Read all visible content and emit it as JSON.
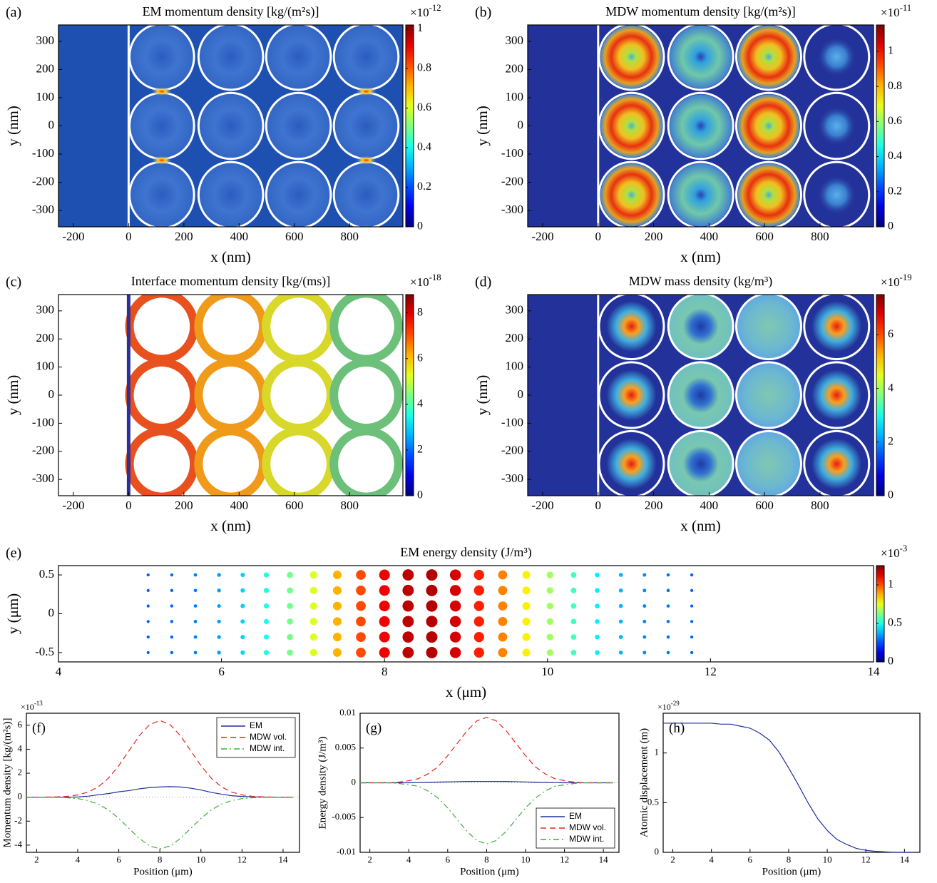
{
  "chart_data": [
    {
      "type": "heatmap",
      "panel_label": "(a)",
      "title": "EM momentum density [kg/(m²s)]",
      "xlabel": "x (nm)",
      "ylabel": "y (nm)",
      "xlim": [
        -254,
        993
      ],
      "xticks": [
        -200,
        0,
        200,
        400,
        600,
        800
      ],
      "ylim": [
        -358,
        358
      ],
      "yticks": [
        -300,
        -200,
        -100,
        0,
        100,
        200,
        300
      ],
      "colorbar": {
        "lim": [
          0,
          1.02
        ],
        "ticks": [
          0,
          0.2,
          0.4,
          0.6,
          0.8,
          1
        ],
        "multiplier": "×10",
        "exponent": "-12"
      }
    },
    {
      "type": "heatmap",
      "panel_label": "(b)",
      "title": "MDW momentum density [kg/(m²s)]",
      "xlabel": "x (nm)",
      "ylabel": "y (nm)",
      "xlim": [
        -254,
        993
      ],
      "xticks": [
        -200,
        0,
        200,
        400,
        600,
        800
      ],
      "ylim": [
        -358,
        358
      ],
      "yticks": [
        -300,
        -200,
        -100,
        0,
        100,
        200,
        300
      ],
      "colorbar": {
        "lim": [
          0,
          1.15
        ],
        "ticks": [
          0,
          0.2,
          0.4,
          0.6,
          0.8,
          1
        ],
        "multiplier": "×10",
        "exponent": "-11"
      }
    },
    {
      "type": "heatmap",
      "panel_label": "(c)",
      "title": "Interface momentum density [kg/(ms)]",
      "xlabel": "x (nm)",
      "ylabel": "y (nm)",
      "xlim": [
        -254,
        993
      ],
      "xticks": [
        -200,
        0,
        200,
        400,
        600,
        800
      ],
      "ylim": [
        -358,
        358
      ],
      "yticks": [
        -300,
        -200,
        -100,
        0,
        100,
        200,
        300
      ],
      "colorbar": {
        "lim": [
          0,
          8.8
        ],
        "ticks": [
          0,
          2,
          4,
          6,
          8
        ],
        "multiplier": "×10",
        "exponent": "-18"
      }
    },
    {
      "type": "heatmap",
      "panel_label": "(d)",
      "title": "MDW mass density (kg/m³)",
      "xlabel": "x (nm)",
      "ylabel": "y (nm)",
      "xlim": [
        -254,
        993
      ],
      "xticks": [
        -200,
        0,
        200,
        400,
        600,
        800
      ],
      "ylim": [
        -358,
        358
      ],
      "yticks": [
        -300,
        -200,
        -100,
        0,
        100,
        200,
        300
      ],
      "colorbar": {
        "lim": [
          0,
          7.5
        ],
        "ticks": [
          0,
          2,
          4,
          6
        ],
        "multiplier": "×10",
        "exponent": "-19"
      }
    },
    {
      "type": "heatmap",
      "panel_label": "(e)",
      "title": "EM energy density (J/m³)",
      "xlabel": "x (μm)",
      "ylabel": "y (μm)",
      "xlim": [
        4,
        14
      ],
      "xticks": [
        4,
        6,
        8,
        10,
        12,
        14
      ],
      "ylim": [
        -0.62,
        0.62
      ],
      "yticks": [
        -0.5,
        0,
        0.5
      ],
      "colorbar": {
        "lim": [
          0,
          1.25
        ],
        "ticks": [
          0,
          0.5,
          1
        ],
        "multiplier": "×10",
        "exponent": "-3"
      }
    },
    {
      "type": "line",
      "panel_label": "(f)",
      "xlabel": "Position (μm)",
      "ylabel": "Momentum density [kg/(m²s)]",
      "xlim": [
        1.5,
        14.8
      ],
      "xticks": [
        2,
        4,
        6,
        8,
        10,
        12,
        14
      ],
      "ylim": [
        -4.6,
        7
      ],
      "yticks": [
        -4,
        -2,
        0,
        2,
        4,
        6
      ],
      "multiplier": "×10",
      "exponent": "-13",
      "legend": "upper right",
      "zero_line": true,
      "x": [
        1.5,
        2,
        2.5,
        3,
        3.5,
        4,
        4.5,
        5,
        5.5,
        6,
        6.5,
        7,
        7.5,
        8,
        8.5,
        9,
        9.5,
        10,
        10.5,
        11,
        11.5,
        12,
        12.5,
        13,
        13.5,
        14,
        14.5
      ],
      "series": [
        {
          "name": "EM",
          "color": "#1f2f9a",
          "dash": "solid",
          "values": [
            0,
            0,
            0,
            0,
            0,
            0.02,
            0.08,
            0.2,
            0.3,
            0.45,
            0.55,
            0.7,
            0.8,
            0.85,
            0.88,
            0.85,
            0.75,
            0.6,
            0.4,
            0.25,
            0.12,
            0.06,
            0.03,
            0.01,
            0,
            0,
            0
          ]
        },
        {
          "name": "MDW vol.",
          "color": "#e8231f",
          "dash": "dashed",
          "values": [
            0,
            0,
            0.01,
            0.03,
            0.07,
            0.19,
            0.42,
            0.86,
            1.59,
            2.63,
            3.88,
            5.13,
            6.05,
            6.4,
            6.05,
            5.13,
            3.88,
            2.63,
            1.59,
            0.86,
            0.42,
            0.19,
            0.07,
            0.03,
            0.01,
            0,
            0
          ]
        },
        {
          "name": "MDW int.",
          "color": "#3cae3c",
          "dash": "dashdot",
          "values": [
            0,
            0,
            -0.01,
            -0.02,
            -0.05,
            -0.12,
            -0.28,
            -0.58,
            -1.07,
            -1.77,
            -2.61,
            -3.44,
            -4.07,
            -4.3,
            -4.07,
            -3.44,
            -2.61,
            -1.77,
            -1.07,
            -0.58,
            -0.28,
            -0.12,
            -0.05,
            -0.02,
            -0.01,
            0,
            0
          ]
        }
      ]
    },
    {
      "type": "line",
      "panel_label": "(g)",
      "xlabel": "Position (μm)",
      "ylabel": "Energy density (J/m³)",
      "xlim": [
        1.5,
        14.8
      ],
      "xticks": [
        2,
        4,
        6,
        8,
        10,
        12,
        14
      ],
      "ylim": [
        -0.01,
        0.01
      ],
      "yticks": [
        -0.01,
        -0.005,
        0,
        0.005,
        0.01
      ],
      "legend": "lower right",
      "zero_line": true,
      "x": [
        1.5,
        2,
        2.5,
        3,
        3.5,
        4,
        4.5,
        5,
        5.5,
        6,
        6.5,
        7,
        7.5,
        8,
        8.5,
        9,
        9.5,
        10,
        10.5,
        11,
        11.5,
        12,
        12.5,
        13,
        13.5,
        14,
        14.5
      ],
      "series": [
        {
          "name": "EM",
          "color": "#1f2f9a",
          "dash": "solid",
          "values": [
            0,
            0,
            0,
            0,
            0,
            0,
            2e-05,
            5e-05,
            0.0001,
            0.00013,
            0.00016,
            0.00019,
            0.0002,
            0.0002,
            0.0002,
            0.00019,
            0.00016,
            0.00012,
            8e-05,
            4e-05,
            2e-05,
            0,
            0,
            0,
            0,
            0,
            0
          ]
        },
        {
          "name": "MDW vol.",
          "color": "#e8231f",
          "dash": "dashed",
          "values": [
            0,
            0,
            0,
            0,
            0.0001,
            0.0003,
            0.0006,
            0.0013,
            0.0023,
            0.0039,
            0.0057,
            0.0075,
            0.0089,
            0.0094,
            0.0089,
            0.0075,
            0.0057,
            0.0039,
            0.0023,
            0.0013,
            0.0006,
            0.0003,
            0.0001,
            0,
            0,
            0,
            0
          ]
        },
        {
          "name": "MDW int.",
          "color": "#3cae3c",
          "dash": "dashdot",
          "values": [
            0,
            0,
            0,
            0,
            -0.0001,
            -0.0003,
            -0.0005,
            -0.0012,
            -0.0022,
            -0.0036,
            -0.0053,
            -0.007,
            -0.0083,
            -0.0088,
            -0.0083,
            -0.007,
            -0.0053,
            -0.0036,
            -0.0022,
            -0.0012,
            -0.0005,
            -0.0003,
            -0.0001,
            0,
            0,
            0,
            0
          ]
        }
      ]
    },
    {
      "type": "line",
      "panel_label": "(h)",
      "xlabel": "Position (μm)",
      "ylabel": "Atomic displacement (m)",
      "xlim": [
        1.5,
        14.8
      ],
      "xticks": [
        2,
        4,
        6,
        8,
        10,
        12,
        14
      ],
      "ylim": [
        0,
        1.4
      ],
      "yticks": [
        0,
        0.5,
        1
      ],
      "multiplier": "×10",
      "exponent": "-29",
      "x": [
        1.5,
        2,
        2.5,
        3,
        3.5,
        4,
        4.5,
        5,
        5.5,
        6,
        6.5,
        7,
        7.5,
        8,
        8.5,
        9,
        9.5,
        10,
        10.5,
        11,
        11.5,
        12,
        12.5,
        13,
        13.5,
        14,
        14.5
      ],
      "series": [
        {
          "color": "#1f2f9a",
          "dash": "solid",
          "values": [
            1.3,
            1.3,
            1.3,
            1.3,
            1.3,
            1.3,
            1.29,
            1.29,
            1.27,
            1.25,
            1.2,
            1.13,
            1.01,
            0.85,
            0.68,
            0.5,
            0.34,
            0.22,
            0.13,
            0.08,
            0.04,
            0.02,
            0.01,
            0.005,
            0,
            0,
            0
          ]
        }
      ]
    }
  ]
}
